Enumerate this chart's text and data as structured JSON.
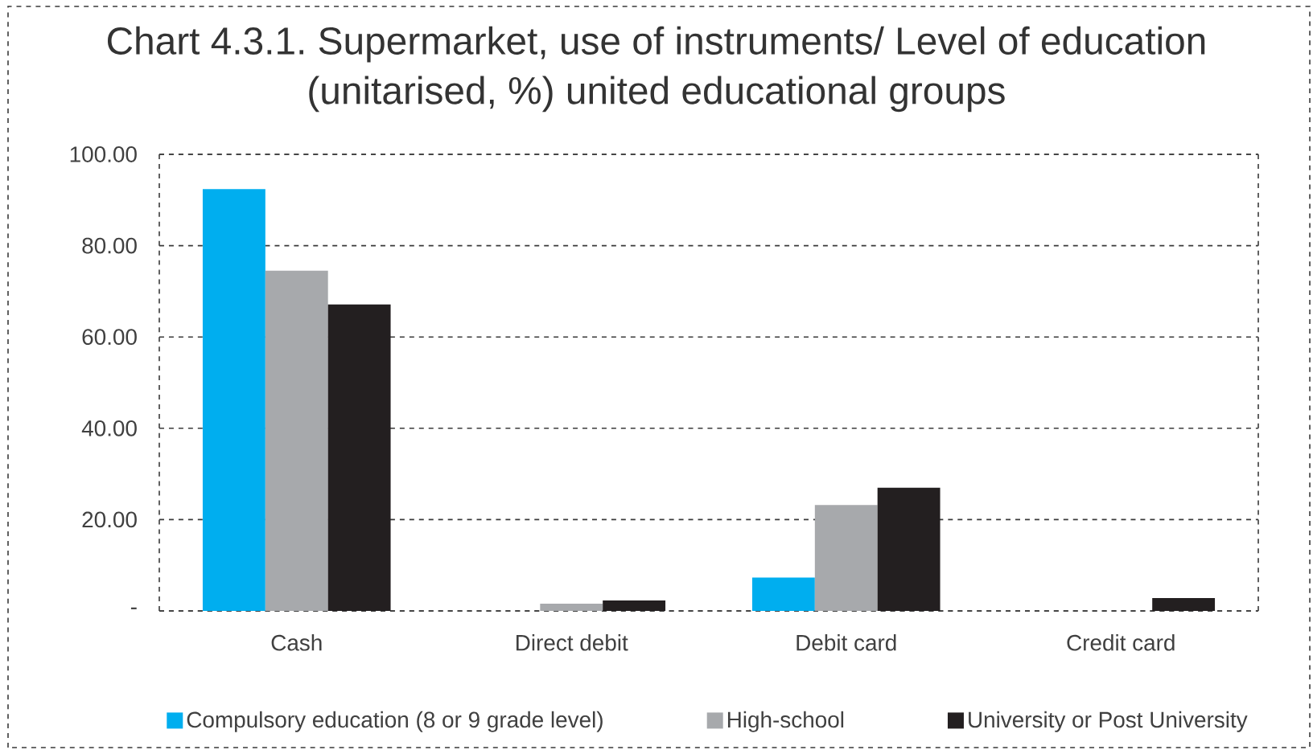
{
  "chart_data": {
    "type": "bar",
    "title": "Chart 4.3.1. Supermarket, use of instruments/ Level of education (unitarised, %) united educational groups",
    "categories": [
      "Cash",
      "Direct debit",
      "Debit card",
      "Credit card"
    ],
    "series": [
      {
        "name": "Compulsory education (8 or 9 grade level)",
        "color": "#00aeef",
        "values": [
          92.4,
          null,
          7.3,
          null
        ]
      },
      {
        "name": "High-school",
        "color": "#a7a9ac",
        "values": [
          74.5,
          1.6,
          23.2,
          null
        ]
      },
      {
        "name": "University or Post University",
        "color": "#231f20",
        "values": [
          67.1,
          2.3,
          27.0,
          2.8
        ]
      }
    ],
    "ylim": [
      0,
      100
    ],
    "yticks": [
      {
        "value": 0,
        "label": "-"
      },
      {
        "value": 20,
        "label": "20.00"
      },
      {
        "value": 40,
        "label": "40.00"
      },
      {
        "value": 60,
        "label": "60.00"
      },
      {
        "value": 80,
        "label": "80.00"
      },
      {
        "value": 100,
        "label": "100.00"
      }
    ],
    "grid": "y",
    "legend": "bottom"
  }
}
